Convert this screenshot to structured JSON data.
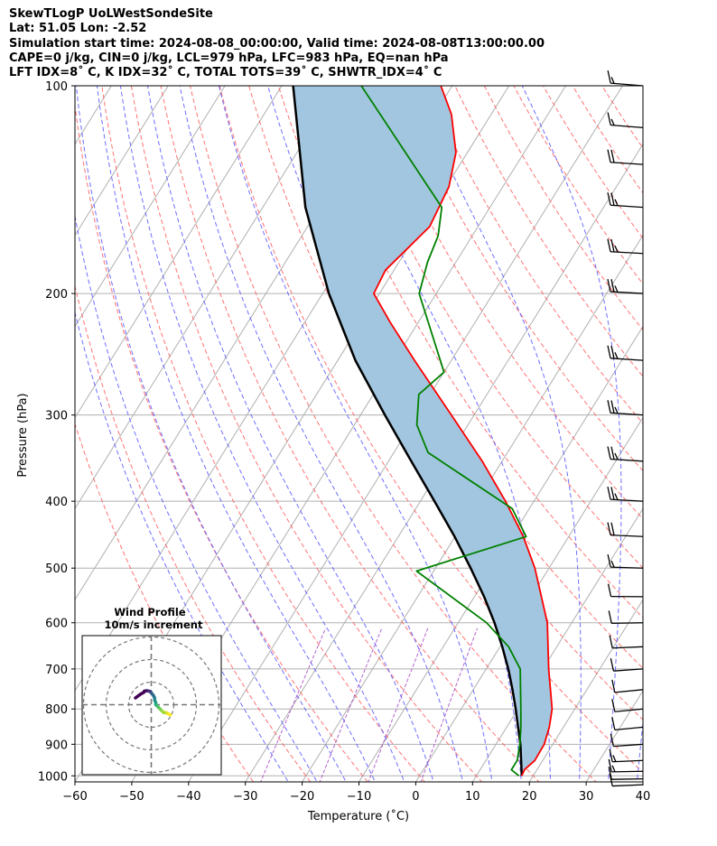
{
  "header": {
    "line1": "SkewTLogP UoLWestSondeSite",
    "line2": "Lat: 51.05   Lon: -2.52",
    "line3": "Simulation start time: 2024-08-08_00:00:00, Valid time: 2024-08-08T13:00:00.00",
    "line4": "CAPE=0 j/kg, CIN=0 j/kg, LCL=979 hPa, LFC=983 hPa, EQ=nan hPa",
    "line5": "LFT IDX=8˚ C, K IDX=32˚ C, TOTAL TOTS=39˚ C, SHWTR_IDX=4˚ C"
  },
  "colors": {
    "temperature": "#ff0000",
    "dewpoint": "#008000",
    "parcel": "#000000",
    "cape_fill": "#a2c6df",
    "dry_adiabat": "#ff5a5a",
    "moist_adiabat": "#5555ff",
    "mixing_ratio": "#a040c0",
    "isotherm": "#b0b0b0",
    "isobar": "#b0b0b0"
  },
  "chart_data": {
    "type": "skewt-logp",
    "xlabel": "Temperature (˚C)",
    "ylabel": "Pressure (hPa)",
    "xlim": [
      -60,
      40
    ],
    "ylim": [
      1050,
      100
    ],
    "y_scale": "log",
    "x_ticks": [
      "−60",
      "−50",
      "−40",
      "−30",
      "−20",
      "−10",
      "0",
      "10",
      "20",
      "30",
      "40"
    ],
    "y_ticks": [
      "1000",
      "900",
      "800",
      "700",
      "600",
      "500",
      "400",
      "300",
      "200",
      "100"
    ],
    "x_tick_values": [
      -60,
      -50,
      -40,
      -30,
      -20,
      -10,
      0,
      10,
      20,
      30,
      40
    ],
    "y_tick_values": [
      1000,
      900,
      800,
      700,
      600,
      500,
      400,
      300,
      200,
      100
    ],
    "temperature": {
      "p": [
        1000,
        980,
        950,
        900,
        850,
        800,
        700,
        600,
        500,
        450,
        400,
        350,
        300,
        250,
        220,
        200,
        185,
        160,
        140,
        125,
        110,
        100
      ],
      "t": [
        18.0,
        17.8,
        18.6,
        18.5,
        17.5,
        16.0,
        11.0,
        5.7,
        -2.5,
        -8.0,
        -15.0,
        -23.5,
        -34.0,
        -46.5,
        -55.0,
        -61.0,
        -61.5,
        -58.5,
        -59.5,
        -62.0,
        -67.0,
        -72.0
      ]
    },
    "dewpoint": {
      "p": [
        1000,
        980,
        950,
        900,
        850,
        800,
        700,
        650,
        600,
        505,
        450,
        410,
        340,
        310,
        280,
        260,
        200,
        180,
        165,
        150,
        100
      ],
      "t": [
        17.5,
        15.5,
        15.5,
        14.2,
        12.5,
        10.5,
        6.0,
        1.5,
        -5.0,
        -23.0,
        -7.5,
        -13.0,
        -34.0,
        -39.0,
        -42.0,
        -40.0,
        -53.0,
        -55.0,
        -56.0,
        -58.5,
        -86.0
      ]
    },
    "parcel": {
      "p": [
        1000,
        950,
        900,
        850,
        800,
        750,
        700,
        650,
        600,
        550,
        500,
        450,
        400,
        350,
        300,
        250,
        200,
        150,
        100
      ],
      "t": [
        18.0,
        16.2,
        14.3,
        12.0,
        9.6,
        6.9,
        3.9,
        0.4,
        -3.6,
        -8.3,
        -13.8,
        -20.1,
        -27.5,
        -36.0,
        -45.7,
        -56.9,
        -68.9,
        -82.5,
        -98.0
      ]
    },
    "wind_barbs": {
      "p": [
        1030,
        1010,
        985,
        950,
        900,
        850,
        800,
        750,
        700,
        650,
        600,
        550,
        500,
        450,
        400,
        350,
        300,
        250,
        200,
        175,
        150,
        130,
        115,
        100
      ],
      "speed_kt": [
        10,
        12,
        15,
        15,
        12,
        10,
        10,
        8,
        8,
        8,
        10,
        10,
        15,
        20,
        25,
        25,
        25,
        25,
        25,
        25,
        25,
        20,
        15,
        15
      ],
      "direction_deg": [
        250,
        255,
        255,
        250,
        245,
        240,
        240,
        240,
        245,
        250,
        255,
        260,
        265,
        268,
        270,
        272,
        272,
        272,
        270,
        270,
        272,
        272,
        275,
        275
      ]
    },
    "hodograph": {
      "title": "Wind Profile",
      "subtitle": "10m/s increment",
      "rings_ms": [
        10,
        20,
        30
      ],
      "u": [
        8.5,
        6.5,
        5.5,
        4,
        3,
        2,
        2,
        1.5,
        1.5,
        1,
        0,
        -0.5,
        -1,
        -2,
        -3,
        -3.3,
        -5,
        -7
      ],
      "v": [
        -4.5,
        -3.5,
        -3.5,
        -2,
        -1,
        0,
        1,
        2,
        3,
        4,
        5.3,
        5.8,
        6,
        6.2,
        6,
        5.5,
        4.5,
        3
      ]
    }
  }
}
